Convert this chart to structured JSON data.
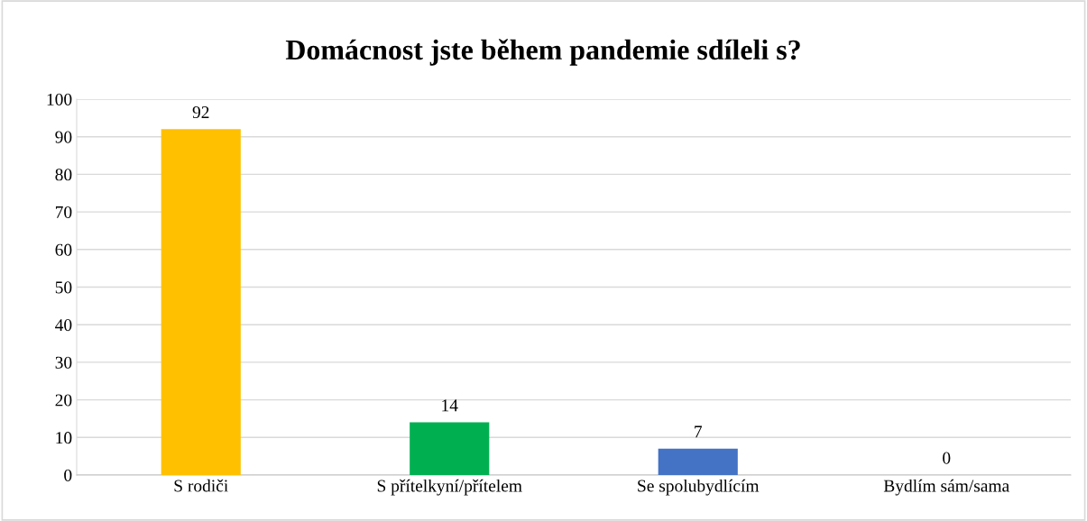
{
  "chart_data": {
    "type": "bar",
    "title": "Domácnost jste během pandemie sdíleli s?",
    "categories": [
      "S rodiči",
      "S přítelkyní/přítelem",
      "Se spolubydlícím",
      "Bydlím sám/sama"
    ],
    "values": [
      92,
      14,
      7,
      0
    ],
    "colors": [
      "#ffc000",
      "#00b050",
      "#4472c4",
      "#a5a5a5"
    ],
    "ylim": [
      0,
      100
    ],
    "yticks": [
      0,
      10,
      20,
      30,
      40,
      50,
      60,
      70,
      80,
      90,
      100
    ],
    "grid": "y",
    "data_labels": true,
    "legend": false
  }
}
